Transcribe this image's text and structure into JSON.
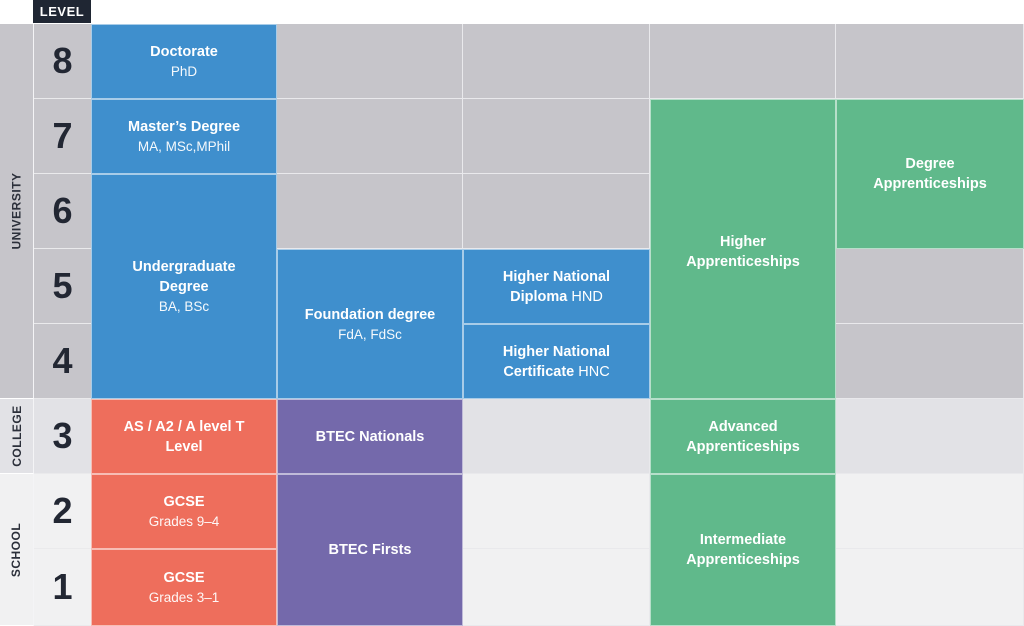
{
  "header": {
    "level_label": "LEVEL"
  },
  "colors": {
    "university_bg": "#c6c5ca",
    "college_bg": "#e2e2e6",
    "school_bg": "#f1f1f2",
    "blue": "#3f8fcd",
    "red": "#ee6e5c",
    "purple": "#7469ab",
    "green": "#60b98b"
  },
  "sections": [
    {
      "label": "UNIVERSITY",
      "levels": [
        8,
        7,
        6,
        5,
        4
      ]
    },
    {
      "label": "COLLEGE",
      "levels": [
        3
      ]
    },
    {
      "label": "SCHOOL",
      "levels": [
        2,
        1
      ]
    }
  ],
  "levels": [
    "8",
    "7",
    "6",
    "5",
    "4",
    "3",
    "2",
    "1"
  ],
  "qualifications": [
    {
      "title": "Doctorate",
      "sub": "PhD",
      "color": "blue",
      "col": 1,
      "levels": [
        8
      ]
    },
    {
      "title": "Master’s Degree",
      "sub": "MA, MSc,MPhil",
      "color": "blue",
      "col": 1,
      "levels": [
        7
      ]
    },
    {
      "title": "Undergraduate Degree",
      "sub": "BA, BSc",
      "color": "blue",
      "col": 1,
      "levels": [
        6,
        4
      ]
    },
    {
      "title": "Foundation degree",
      "sub": "FdA, FdSc",
      "color": "blue",
      "col": 2,
      "levels": [
        5,
        4
      ]
    },
    {
      "title": "Higher National Diploma",
      "suffix": "HND",
      "color": "blue",
      "col": 3,
      "levels": [
        5
      ]
    },
    {
      "title": "Higher National Certificate",
      "suffix": "HNC",
      "color": "blue",
      "col": 3,
      "levels": [
        4
      ]
    },
    {
      "title": "Higher Apprenticeships",
      "color": "green",
      "col": 4,
      "levels": [
        7,
        4
      ]
    },
    {
      "title": "Degree Apprenticeships",
      "color": "green",
      "col": 5,
      "levels": [
        7,
        6
      ]
    },
    {
      "title": "AS / A2 / A level T Level",
      "color": "red",
      "col": 1,
      "levels": [
        3
      ]
    },
    {
      "title": "BTEC Nationals",
      "color": "purple",
      "col": 2,
      "levels": [
        3
      ]
    },
    {
      "title": "Advanced Apprenticeships",
      "color": "green",
      "col": 4,
      "levels": [
        3
      ]
    },
    {
      "title": "GCSE",
      "sub": "Grades 9–4",
      "color": "red",
      "col": 1,
      "levels": [
        2
      ]
    },
    {
      "title": "GCSE",
      "sub": "Grades 3–1",
      "color": "red",
      "col": 1,
      "levels": [
        1
      ]
    },
    {
      "title": "BTEC Firsts",
      "color": "purple",
      "col": 2,
      "levels": [
        2,
        1
      ]
    },
    {
      "title": "Intermediate Apprenticeships",
      "color": "green",
      "col": 4,
      "levels": [
        2,
        1
      ]
    }
  ]
}
